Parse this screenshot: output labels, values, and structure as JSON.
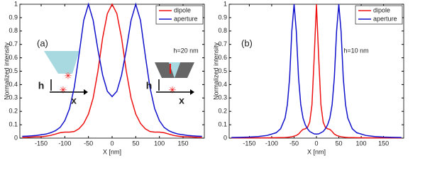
{
  "chart_data": [
    {
      "type": "line",
      "xlabel": "X [nm]",
      "ylabel": "Normalized intensity",
      "annotations": [
        "(a)",
        "h=20 nm",
        "h",
        "x",
        "h",
        "x"
      ],
      "x": [
        -190,
        -180,
        -170,
        -160,
        -150,
        -140,
        -130,
        -120,
        -110,
        -100,
        -90,
        -80,
        -70,
        -60,
        -50,
        -40,
        -30,
        -20,
        -10,
        0,
        10,
        20,
        30,
        40,
        50,
        60,
        70,
        80,
        90,
        100,
        110,
        120,
        130,
        140,
        150,
        160,
        170,
        180,
        190
      ],
      "series": [
        {
          "name": "dipole",
          "color": "#ee1111",
          "values": [
            0.005,
            0.006,
            0.008,
            0.01,
            0.01,
            0.015,
            0.02,
            0.03,
            0.04,
            0.045,
            0.045,
            0.05,
            0.07,
            0.11,
            0.18,
            0.3,
            0.5,
            0.75,
            0.93,
            1,
            0.93,
            0.75,
            0.5,
            0.3,
            0.18,
            0.11,
            0.07,
            0.05,
            0.045,
            0.045,
            0.04,
            0.03,
            0.02,
            0.015,
            0.01,
            0.01,
            0.008,
            0.006,
            0.005
          ]
        },
        {
          "name": "aperture",
          "color": "#1111cc",
          "values": [
            0.013,
            0.015,
            0.017,
            0.02,
            0.025,
            0.03,
            0.04,
            0.055,
            0.08,
            0.13,
            0.22,
            0.38,
            0.62,
            0.88,
            1,
            0.88,
            0.66,
            0.47,
            0.35,
            0.31,
            0.35,
            0.47,
            0.66,
            0.88,
            1,
            0.88,
            0.62,
            0.38,
            0.22,
            0.13,
            0.08,
            0.055,
            0.04,
            0.03,
            0.025,
            0.02,
            0.017,
            0.015,
            0.013
          ]
        }
      ],
      "xlim": [
        -195,
        195
      ],
      "ylim": [
        0,
        1
      ],
      "xticks": [
        -150,
        -100,
        -50,
        0,
        50,
        100,
        150
      ],
      "yticks": [
        0,
        0.1,
        0.2,
        0.3,
        0.4,
        0.5,
        0.6,
        0.7,
        0.8,
        0.9,
        1
      ],
      "legend": "upper right"
    },
    {
      "type": "line",
      "xlabel": "X [nm]",
      "ylabel": "Normalized intensity",
      "annotations": [
        "(b)",
        "h=10 nm"
      ],
      "x": [
        -190,
        -170,
        -150,
        -130,
        -110,
        -90,
        -80,
        -70,
        -65,
        -60,
        -55,
        -50,
        -45,
        -40,
        -35,
        -30,
        -25,
        -20,
        -15,
        -10,
        -5,
        0,
        5,
        10,
        15,
        20,
        25,
        30,
        35,
        40,
        45,
        50,
        55,
        60,
        65,
        70,
        80,
        90,
        110,
        130,
        150,
        170,
        190
      ],
      "series": [
        {
          "name": "dipole",
          "color": "#ee1111",
          "values": [
            0.002,
            0.002,
            0.002,
            0.002,
            0.002,
            0.003,
            0.004,
            0.005,
            0.006,
            0.008,
            0.01,
            0.015,
            0.02,
            0.03,
            0.05,
            0.065,
            0.07,
            0.08,
            0.12,
            0.25,
            0.6,
            1,
            0.6,
            0.25,
            0.12,
            0.08,
            0.07,
            0.065,
            0.05,
            0.03,
            0.02,
            0.015,
            0.01,
            0.008,
            0.006,
            0.005,
            0.004,
            0.003,
            0.002,
            0.002,
            0.002,
            0.002,
            0.002
          ]
        },
        {
          "name": "aperture",
          "color": "#1111cc",
          "values": [
            0.005,
            0.006,
            0.008,
            0.012,
            0.02,
            0.04,
            0.07,
            0.15,
            0.25,
            0.45,
            0.8,
            1,
            0.8,
            0.45,
            0.25,
            0.15,
            0.1,
            0.07,
            0.05,
            0.04,
            0.032,
            0.03,
            0.032,
            0.04,
            0.05,
            0.07,
            0.1,
            0.15,
            0.25,
            0.45,
            0.8,
            1,
            0.8,
            0.45,
            0.25,
            0.15,
            0.07,
            0.04,
            0.02,
            0.012,
            0.008,
            0.006,
            0.005
          ]
        }
      ],
      "xlim": [
        -195,
        195
      ],
      "ylim": [
        0,
        1
      ],
      "xticks": [
        -150,
        -100,
        -50,
        0,
        50,
        100,
        150
      ],
      "yticks": [
        0,
        0.1,
        0.2,
        0.3,
        0.4,
        0.5,
        0.6,
        0.7,
        0.8,
        0.9,
        1
      ],
      "legend": "upper right"
    }
  ]
}
